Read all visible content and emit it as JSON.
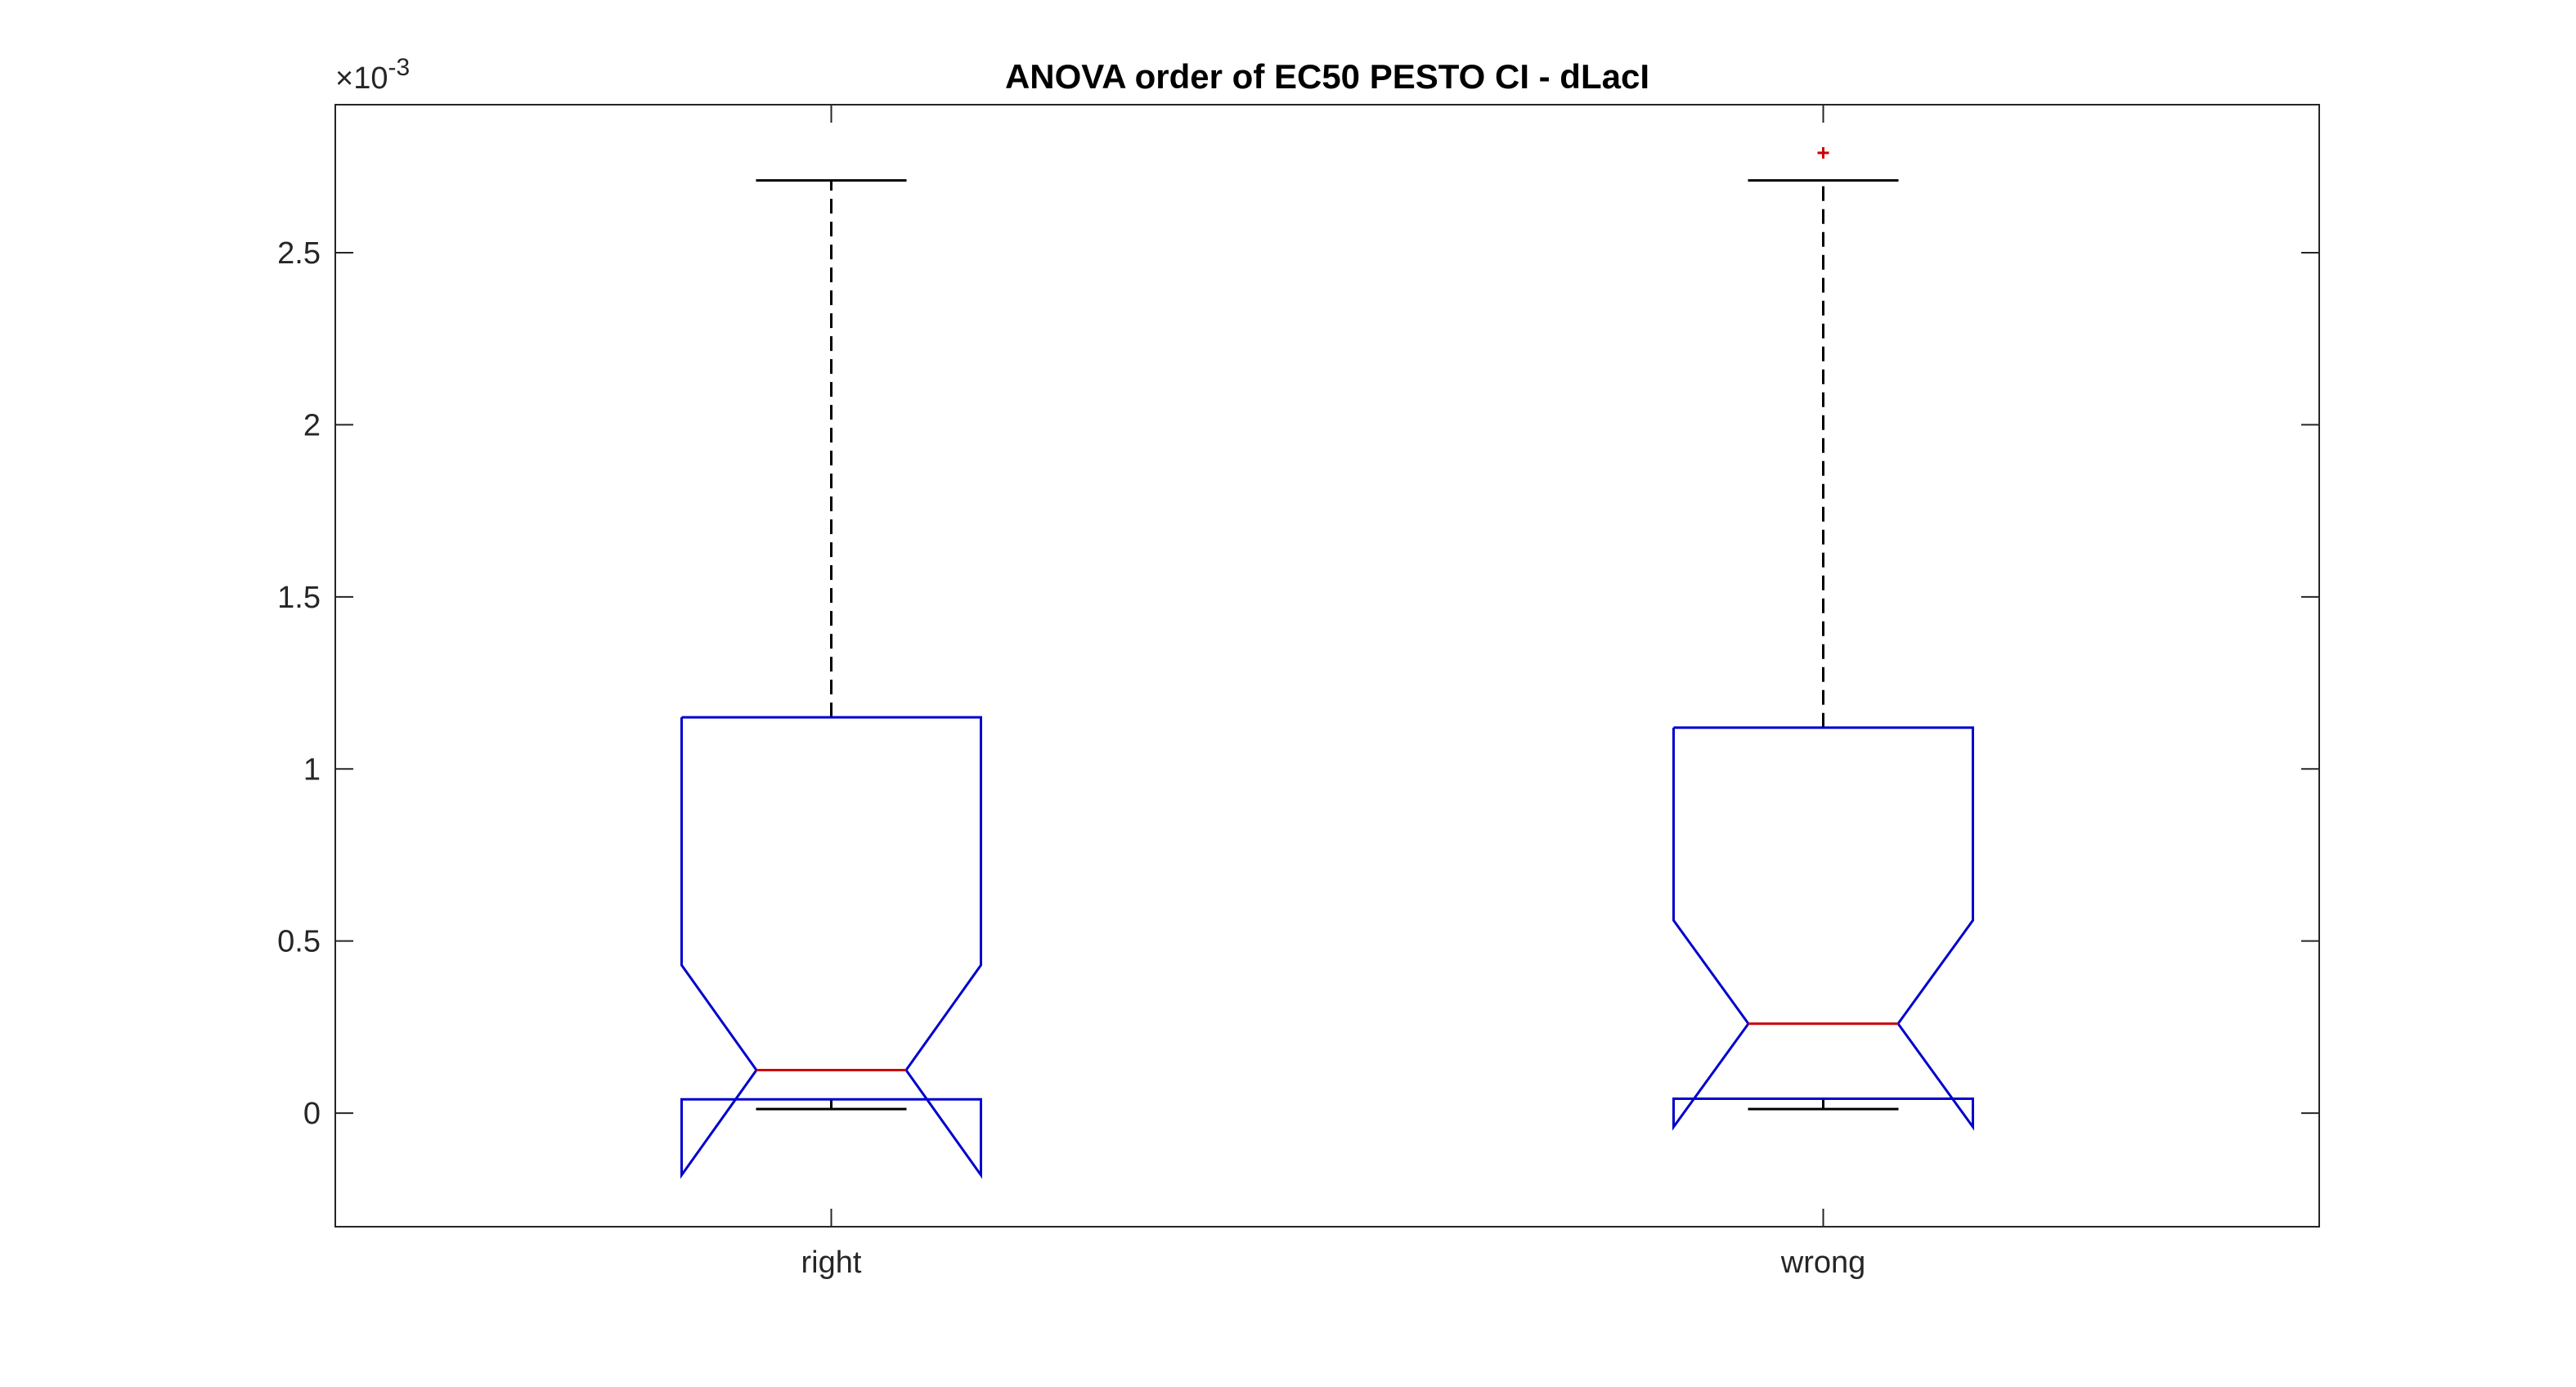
{
  "chart_data": {
    "type": "box",
    "title": "ANOVA order of EC50 PESTO CI - dLacI",
    "xlabel": "",
    "ylabel": "",
    "exponent_label": "×10",
    "exponent_power": "-3",
    "categories": [
      "right",
      "wrong"
    ],
    "ylim": [
      -0.00033,
      0.00293
    ],
    "yticks": [
      0,
      0.0005,
      0.001,
      0.0015,
      0.002,
      0.0025
    ],
    "ytick_labels": [
      "0",
      "0.5",
      "1",
      "1.5",
      "2",
      "2.5"
    ],
    "grid": false,
    "notched": true,
    "boxes": [
      {
        "category": "right",
        "whisker_low": 1.2e-05,
        "q1": 4e-05,
        "median": 0.000125,
        "q3": 0.00115,
        "whisker_high": 0.00271,
        "notch_low": -0.00018,
        "notch_high": 0.00043,
        "outliers": []
      },
      {
        "category": "wrong",
        "whisker_low": 1.2e-05,
        "q1": 4.2e-05,
        "median": 0.00026,
        "q3": 0.00112,
        "whisker_high": 0.00271,
        "notch_low": -4e-05,
        "notch_high": 0.00056,
        "outliers": [
          0.00279
        ]
      }
    ],
    "colors": {
      "box": "#0000cc",
      "median": "#cc0000",
      "whisker": "#000000",
      "outlier": "#cc0000",
      "axes": "#262626",
      "frame": "#262626"
    }
  }
}
